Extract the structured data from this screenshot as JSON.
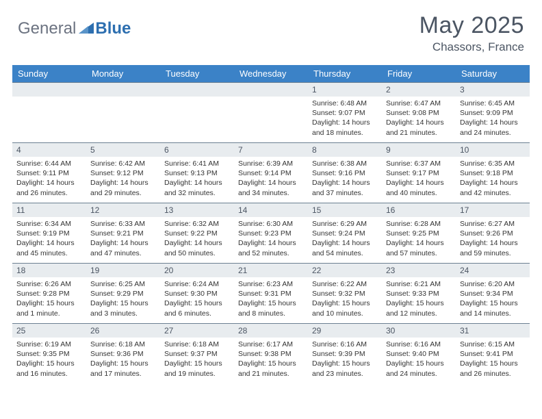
{
  "brand": {
    "part1": "General",
    "part2": "Blue"
  },
  "title": "May 2025",
  "location": "Chassors, France",
  "colors": {
    "header_bg": "#3b82c7",
    "header_text": "#ffffff",
    "daynum_bg": "#e8ecef",
    "border": "#6b7f91",
    "body_text": "#333333",
    "title_text": "#4b5563",
    "brand_gray": "#6b7280",
    "brand_blue": "#2d6fb0"
  },
  "day_headers": [
    "Sunday",
    "Monday",
    "Tuesday",
    "Wednesday",
    "Thursday",
    "Friday",
    "Saturday"
  ],
  "weeks": [
    [
      null,
      null,
      null,
      null,
      {
        "n": "1",
        "sr": "6:48 AM",
        "ss": "9:07 PM",
        "dl": "14 hours and 18 minutes."
      },
      {
        "n": "2",
        "sr": "6:47 AM",
        "ss": "9:08 PM",
        "dl": "14 hours and 21 minutes."
      },
      {
        "n": "3",
        "sr": "6:45 AM",
        "ss": "9:09 PM",
        "dl": "14 hours and 24 minutes."
      }
    ],
    [
      {
        "n": "4",
        "sr": "6:44 AM",
        "ss": "9:11 PM",
        "dl": "14 hours and 26 minutes."
      },
      {
        "n": "5",
        "sr": "6:42 AM",
        "ss": "9:12 PM",
        "dl": "14 hours and 29 minutes."
      },
      {
        "n": "6",
        "sr": "6:41 AM",
        "ss": "9:13 PM",
        "dl": "14 hours and 32 minutes."
      },
      {
        "n": "7",
        "sr": "6:39 AM",
        "ss": "9:14 PM",
        "dl": "14 hours and 34 minutes."
      },
      {
        "n": "8",
        "sr": "6:38 AM",
        "ss": "9:16 PM",
        "dl": "14 hours and 37 minutes."
      },
      {
        "n": "9",
        "sr": "6:37 AM",
        "ss": "9:17 PM",
        "dl": "14 hours and 40 minutes."
      },
      {
        "n": "10",
        "sr": "6:35 AM",
        "ss": "9:18 PM",
        "dl": "14 hours and 42 minutes."
      }
    ],
    [
      {
        "n": "11",
        "sr": "6:34 AM",
        "ss": "9:19 PM",
        "dl": "14 hours and 45 minutes."
      },
      {
        "n": "12",
        "sr": "6:33 AM",
        "ss": "9:21 PM",
        "dl": "14 hours and 47 minutes."
      },
      {
        "n": "13",
        "sr": "6:32 AM",
        "ss": "9:22 PM",
        "dl": "14 hours and 50 minutes."
      },
      {
        "n": "14",
        "sr": "6:30 AM",
        "ss": "9:23 PM",
        "dl": "14 hours and 52 minutes."
      },
      {
        "n": "15",
        "sr": "6:29 AM",
        "ss": "9:24 PM",
        "dl": "14 hours and 54 minutes."
      },
      {
        "n": "16",
        "sr": "6:28 AM",
        "ss": "9:25 PM",
        "dl": "14 hours and 57 minutes."
      },
      {
        "n": "17",
        "sr": "6:27 AM",
        "ss": "9:26 PM",
        "dl": "14 hours and 59 minutes."
      }
    ],
    [
      {
        "n": "18",
        "sr": "6:26 AM",
        "ss": "9:28 PM",
        "dl": "15 hours and 1 minute."
      },
      {
        "n": "19",
        "sr": "6:25 AM",
        "ss": "9:29 PM",
        "dl": "15 hours and 3 minutes."
      },
      {
        "n": "20",
        "sr": "6:24 AM",
        "ss": "9:30 PM",
        "dl": "15 hours and 6 minutes."
      },
      {
        "n": "21",
        "sr": "6:23 AM",
        "ss": "9:31 PM",
        "dl": "15 hours and 8 minutes."
      },
      {
        "n": "22",
        "sr": "6:22 AM",
        "ss": "9:32 PM",
        "dl": "15 hours and 10 minutes."
      },
      {
        "n": "23",
        "sr": "6:21 AM",
        "ss": "9:33 PM",
        "dl": "15 hours and 12 minutes."
      },
      {
        "n": "24",
        "sr": "6:20 AM",
        "ss": "9:34 PM",
        "dl": "15 hours and 14 minutes."
      }
    ],
    [
      {
        "n": "25",
        "sr": "6:19 AM",
        "ss": "9:35 PM",
        "dl": "15 hours and 16 minutes."
      },
      {
        "n": "26",
        "sr": "6:18 AM",
        "ss": "9:36 PM",
        "dl": "15 hours and 17 minutes."
      },
      {
        "n": "27",
        "sr": "6:18 AM",
        "ss": "9:37 PM",
        "dl": "15 hours and 19 minutes."
      },
      {
        "n": "28",
        "sr": "6:17 AM",
        "ss": "9:38 PM",
        "dl": "15 hours and 21 minutes."
      },
      {
        "n": "29",
        "sr": "6:16 AM",
        "ss": "9:39 PM",
        "dl": "15 hours and 23 minutes."
      },
      {
        "n": "30",
        "sr": "6:16 AM",
        "ss": "9:40 PM",
        "dl": "15 hours and 24 minutes."
      },
      {
        "n": "31",
        "sr": "6:15 AM",
        "ss": "9:41 PM",
        "dl": "15 hours and 26 minutes."
      }
    ]
  ],
  "labels": {
    "sunrise": "Sunrise: ",
    "sunset": "Sunset: ",
    "daylight": "Daylight: "
  }
}
